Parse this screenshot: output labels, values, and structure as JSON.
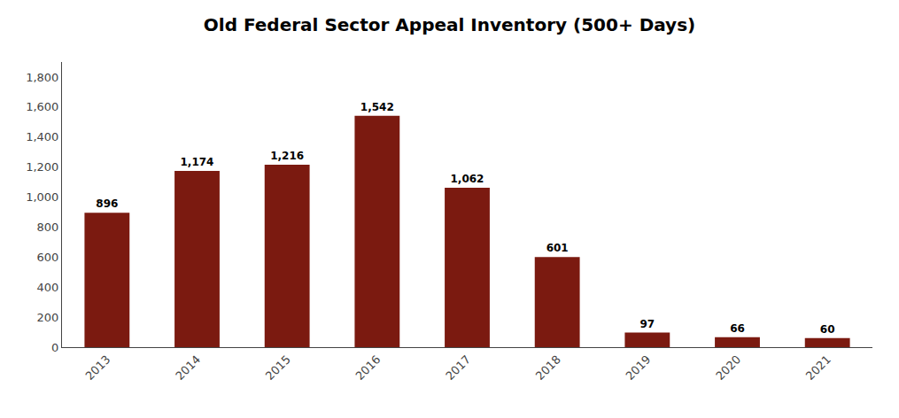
{
  "chart_data": {
    "type": "bar",
    "title": "Old Federal Sector Appeal Inventory (500+ Days)",
    "categories": [
      "2013",
      "2014",
      "2015",
      "2016",
      "2017",
      "2018",
      "2019",
      "2020",
      "2021"
    ],
    "values": [
      896,
      1174,
      1216,
      1542,
      1062,
      601,
      97,
      66,
      60
    ],
    "value_labels": [
      "896",
      "1,174",
      "1,216",
      "1,542",
      "1,062",
      "601",
      "97",
      "66",
      "60"
    ],
    "data_labels": true,
    "color": "#7B1A10",
    "ylim": [
      0,
      1900
    ],
    "yticks": [
      0,
      200,
      400,
      600,
      800,
      {
        "value": 1000,
        "label": "1,000"
      },
      {
        "value": 1200,
        "label": "1,200"
      },
      {
        "value": 1400,
        "label": "1,400"
      },
      {
        "value": 1600,
        "label": "1,600"
      },
      {
        "value": 1800,
        "label": "1,800"
      }
    ],
    "grid": false
  }
}
